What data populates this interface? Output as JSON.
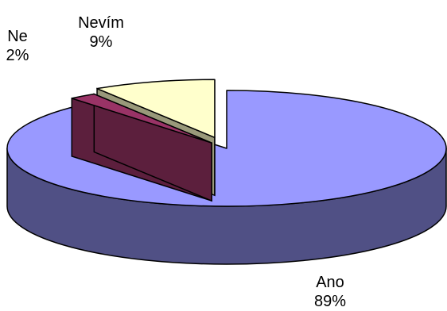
{
  "chart_data": {
    "type": "pie",
    "style": "3d-exploded",
    "slices": [
      {
        "label": "Ano",
        "value": 89,
        "display": "89%",
        "color": "#9999ff"
      },
      {
        "label": "Ne",
        "value": 2,
        "display": "2%",
        "color": "#993366"
      },
      {
        "label": "Nevím",
        "value": 9,
        "display": "9%",
        "color": "#ffffcc"
      }
    ],
    "legend": "none",
    "title": ""
  }
}
